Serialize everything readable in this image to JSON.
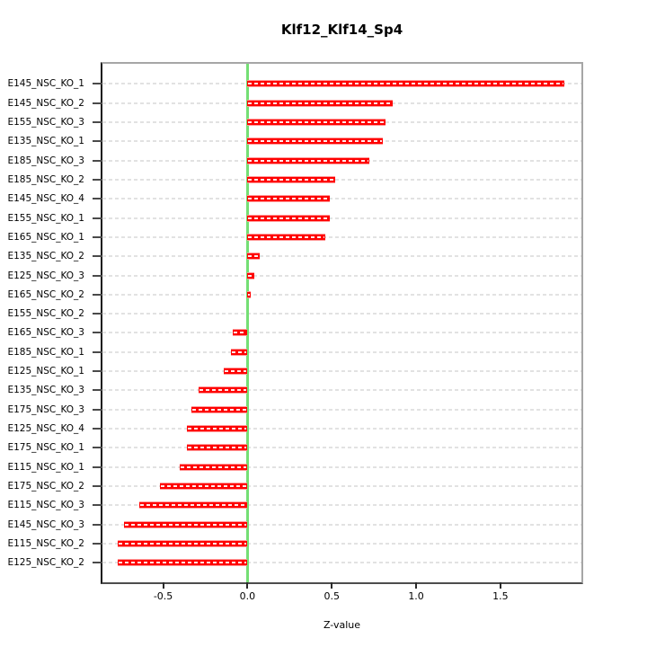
{
  "chart_data": {
    "type": "bar",
    "orientation": "horizontal",
    "title": "Klf12_Klf14_Sp4",
    "xlabel": "Z-value",
    "categories": [
      "E145_NSC_KO_1",
      "E145_NSC_KO_2",
      "E155_NSC_KO_3",
      "E135_NSC_KO_1",
      "E185_NSC_KO_3",
      "E185_NSC_KO_2",
      "E145_NSC_KO_4",
      "E155_NSC_KO_1",
      "E165_NSC_KO_1",
      "E135_NSC_KO_2",
      "E125_NSC_KO_3",
      "E165_NSC_KO_2",
      "E155_NSC_KO_2",
      "E165_NSC_KO_3",
      "E185_NSC_KO_1",
      "E125_NSC_KO_1",
      "E135_NSC_KO_3",
      "E175_NSC_KO_3",
      "E125_NSC_KO_4",
      "E175_NSC_KO_1",
      "E115_NSC_KO_1",
      "E175_NSC_KO_2",
      "E115_NSC_KO_3",
      "E145_NSC_KO_3",
      "E115_NSC_KO_2",
      "E125_NSC_KO_2"
    ],
    "values": [
      1.88,
      0.86,
      0.82,
      0.8,
      0.72,
      0.52,
      0.49,
      0.49,
      0.46,
      0.07,
      0.04,
      0.02,
      0.0,
      -0.09,
      -0.1,
      -0.14,
      -0.29,
      -0.33,
      -0.36,
      -0.36,
      -0.4,
      -0.52,
      -0.64,
      -0.73,
      -0.77,
      -0.77
    ],
    "xlim": [
      -0.86,
      1.98
    ],
    "x_tick_values": [
      -0.5,
      0.0,
      0.5,
      1.0,
      1.5
    ],
    "x_tick_labels": [
      "-0.5",
      "0.0",
      "0.5",
      "1.0",
      "1.5"
    ],
    "zero_line_value": 0.0,
    "grid": "horizontal-dashed",
    "legend": null,
    "colors": {
      "bar": "#FF0000",
      "bar_edge": "#FF9B9B",
      "zero_line": "#74DF74",
      "grid": "#E2E2E2",
      "box": "#A6A6A6",
      "axis_text": "#000000"
    }
  }
}
